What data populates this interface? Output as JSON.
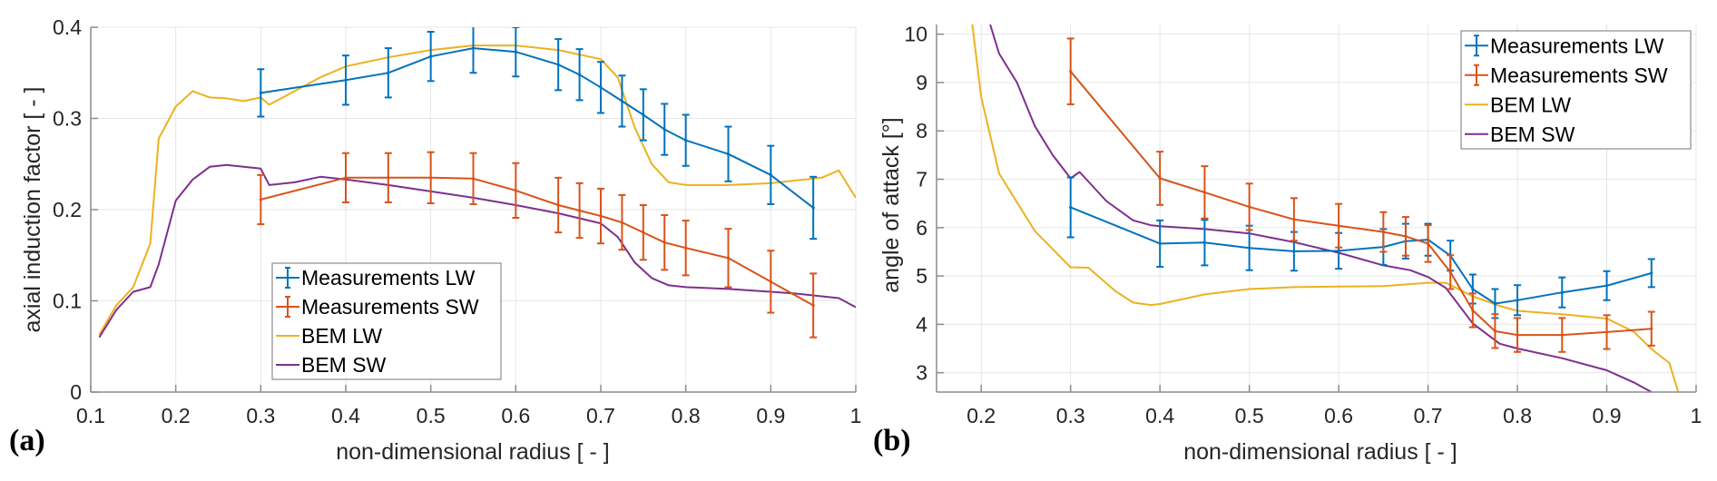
{
  "chart_data": [
    {
      "id": "a",
      "type": "line",
      "panel_label": "(a)",
      "title": "",
      "xlabel": "non-dimensional radius [ - ]",
      "ylabel": "axial induction factor [ - ]",
      "xlim": [
        0.1,
        1.0
      ],
      "ylim": [
        0,
        0.4
      ],
      "xticks": [
        0.1,
        0.2,
        0.3,
        0.4,
        0.5,
        0.6,
        0.7,
        0.8,
        0.9,
        1
      ],
      "xtick_labels": [
        "0.1",
        "0.2",
        "0.3",
        "0.4",
        "0.5",
        "0.6",
        "0.7",
        "0.8",
        "0.9",
        "1"
      ],
      "yticks": [
        0,
        0.1,
        0.2,
        0.3,
        0.4
      ],
      "ytick_labels": [
        "0",
        "0.1",
        "0.2",
        "0.3",
        "0.4"
      ],
      "grid": true,
      "legend_position": "lower-left",
      "series": [
        {
          "name": "Measurements LW",
          "color": "#0072BD",
          "errorbars": true,
          "x": [
            0.3,
            0.4,
            0.45,
            0.5,
            0.55,
            0.6,
            0.65,
            0.675,
            0.7,
            0.725,
            0.75,
            0.775,
            0.8,
            0.85,
            0.9,
            0.95
          ],
          "y": [
            0.328,
            0.342,
            0.35,
            0.368,
            0.377,
            0.373,
            0.359,
            0.348,
            0.334,
            0.319,
            0.304,
            0.288,
            0.276,
            0.261,
            0.238,
            0.202
          ],
          "err": [
            0.026,
            0.027,
            0.027,
            0.027,
            0.027,
            0.027,
            0.028,
            0.028,
            0.028,
            0.028,
            0.028,
            0.028,
            0.028,
            0.03,
            0.032,
            0.034
          ]
        },
        {
          "name": "Measurements SW",
          "color": "#D95319",
          "errorbars": true,
          "x": [
            0.3,
            0.4,
            0.45,
            0.5,
            0.55,
            0.6,
            0.65,
            0.675,
            0.7,
            0.725,
            0.75,
            0.775,
            0.8,
            0.85,
            0.9,
            0.95
          ],
          "y": [
            0.211,
            0.235,
            0.235,
            0.235,
            0.234,
            0.221,
            0.205,
            0.199,
            0.193,
            0.186,
            0.175,
            0.164,
            0.158,
            0.147,
            0.121,
            0.095
          ],
          "err": [
            0.027,
            0.027,
            0.027,
            0.028,
            0.028,
            0.03,
            0.03,
            0.03,
            0.03,
            0.03,
            0.03,
            0.03,
            0.03,
            0.032,
            0.034,
            0.035
          ]
        },
        {
          "name": "BEM LW",
          "color": "#EDB120",
          "errorbars": false,
          "x": [
            0.11,
            0.13,
            0.15,
            0.17,
            0.18,
            0.2,
            0.22,
            0.24,
            0.26,
            0.28,
            0.3,
            0.31,
            0.34,
            0.37,
            0.4,
            0.45,
            0.5,
            0.55,
            0.6,
            0.65,
            0.7,
            0.72,
            0.74,
            0.76,
            0.78,
            0.8,
            0.85,
            0.9,
            0.93,
            0.96,
            0.98,
            1.0
          ],
          "y": [
            0.063,
            0.095,
            0.115,
            0.163,
            0.278,
            0.313,
            0.33,
            0.323,
            0.322,
            0.319,
            0.323,
            0.315,
            0.33,
            0.345,
            0.357,
            0.367,
            0.375,
            0.38,
            0.38,
            0.375,
            0.365,
            0.345,
            0.29,
            0.25,
            0.23,
            0.227,
            0.227,
            0.229,
            0.232,
            0.235,
            0.243,
            0.213
          ]
        },
        {
          "name": "BEM SW",
          "color": "#7E2F8E",
          "errorbars": false,
          "x": [
            0.11,
            0.13,
            0.15,
            0.17,
            0.18,
            0.2,
            0.22,
            0.24,
            0.26,
            0.28,
            0.3,
            0.31,
            0.34,
            0.37,
            0.4,
            0.45,
            0.5,
            0.55,
            0.6,
            0.65,
            0.7,
            0.72,
            0.74,
            0.76,
            0.78,
            0.8,
            0.85,
            0.9,
            0.93,
            0.96,
            0.98,
            1.0
          ],
          "y": [
            0.06,
            0.09,
            0.11,
            0.115,
            0.14,
            0.21,
            0.233,
            0.247,
            0.249,
            0.247,
            0.245,
            0.227,
            0.23,
            0.236,
            0.233,
            0.227,
            0.22,
            0.213,
            0.205,
            0.196,
            0.185,
            0.17,
            0.142,
            0.125,
            0.117,
            0.115,
            0.113,
            0.11,
            0.108,
            0.105,
            0.103,
            0.093
          ]
        }
      ]
    },
    {
      "id": "b",
      "type": "line",
      "panel_label": "(b)",
      "title": "",
      "xlabel": "non-dimensional radius [ - ]",
      "ylabel": "angle of attack [°]",
      "xlim": [
        0.15,
        1.0
      ],
      "ylim": [
        2.6,
        10.2
      ],
      "xticks": [
        0.2,
        0.3,
        0.4,
        0.5,
        0.6,
        0.7,
        0.8,
        0.9,
        1
      ],
      "xtick_labels": [
        "0.2",
        "0.3",
        "0.4",
        "0.5",
        "0.6",
        "0.7",
        "0.8",
        "0.9",
        "1"
      ],
      "yticks": [
        3,
        4,
        5,
        6,
        7,
        8,
        9,
        10
      ],
      "ytick_labels": [
        "3",
        "4",
        "5",
        "6",
        "7",
        "8",
        "9",
        "10"
      ],
      "grid": true,
      "legend_position": "top-right",
      "series": [
        {
          "name": "Measurements LW",
          "color": "#0072BD",
          "errorbars": true,
          "x": [
            0.3,
            0.4,
            0.45,
            0.5,
            0.55,
            0.6,
            0.65,
            0.675,
            0.7,
            0.725,
            0.75,
            0.775,
            0.8,
            0.85,
            0.9,
            0.95
          ],
          "y": [
            6.42,
            5.67,
            5.69,
            5.58,
            5.51,
            5.52,
            5.6,
            5.72,
            5.75,
            5.42,
            4.73,
            4.43,
            4.5,
            4.66,
            4.8,
            5.06
          ],
          "err": [
            0.62,
            0.48,
            0.47,
            0.46,
            0.4,
            0.37,
            0.37,
            0.36,
            0.33,
            0.31,
            0.3,
            0.3,
            0.31,
            0.31,
            0.3,
            0.29
          ]
        },
        {
          "name": "Measurements SW",
          "color": "#D95319",
          "errorbars": true,
          "x": [
            0.3,
            0.4,
            0.45,
            0.5,
            0.55,
            0.6,
            0.65,
            0.675,
            0.7,
            0.725,
            0.75,
            0.775,
            0.8,
            0.85,
            0.9,
            0.95
          ],
          "y": [
            9.23,
            7.02,
            6.73,
            6.43,
            6.17,
            6.04,
            5.91,
            5.82,
            5.67,
            5.08,
            4.29,
            3.86,
            3.78,
            3.78,
            3.84,
            3.91
          ],
          "err": [
            0.68,
            0.55,
            0.54,
            0.48,
            0.44,
            0.45,
            0.41,
            0.4,
            0.38,
            0.35,
            0.35,
            0.35,
            0.35,
            0.35,
            0.35,
            0.35
          ]
        },
        {
          "name": "BEM LW",
          "color": "#EDB120",
          "errorbars": false,
          "x": [
            0.19,
            0.2,
            0.22,
            0.26,
            0.3,
            0.32,
            0.35,
            0.37,
            0.39,
            0.4,
            0.45,
            0.5,
            0.55,
            0.6,
            0.65,
            0.7,
            0.72,
            0.75,
            0.78,
            0.8,
            0.85,
            0.9,
            0.93,
            0.95,
            0.97,
            0.98
          ],
          "y": [
            10.2,
            8.7,
            7.12,
            5.93,
            5.18,
            5.17,
            4.69,
            4.45,
            4.4,
            4.42,
            4.62,
            4.73,
            4.77,
            4.78,
            4.79,
            4.86,
            4.86,
            4.58,
            4.38,
            4.28,
            4.21,
            4.12,
            3.85,
            3.49,
            3.2,
            2.6
          ]
        },
        {
          "name": "BEM SW",
          "color": "#7E2F8E",
          "errorbars": false,
          "x": [
            0.21,
            0.22,
            0.24,
            0.26,
            0.28,
            0.3,
            0.31,
            0.34,
            0.37,
            0.39,
            0.4,
            0.45,
            0.5,
            0.55,
            0.6,
            0.65,
            0.68,
            0.7,
            0.72,
            0.75,
            0.78,
            0.8,
            0.85,
            0.9,
            0.93,
            0.95
          ],
          "y": [
            10.2,
            9.6,
            9.0,
            8.1,
            7.5,
            7.02,
            7.15,
            6.55,
            6.15,
            6.05,
            6.03,
            5.97,
            5.88,
            5.7,
            5.48,
            5.22,
            5.12,
            4.98,
            4.75,
            4.02,
            3.6,
            3.5,
            3.3,
            3.05,
            2.8,
            2.6
          ]
        }
      ]
    }
  ]
}
